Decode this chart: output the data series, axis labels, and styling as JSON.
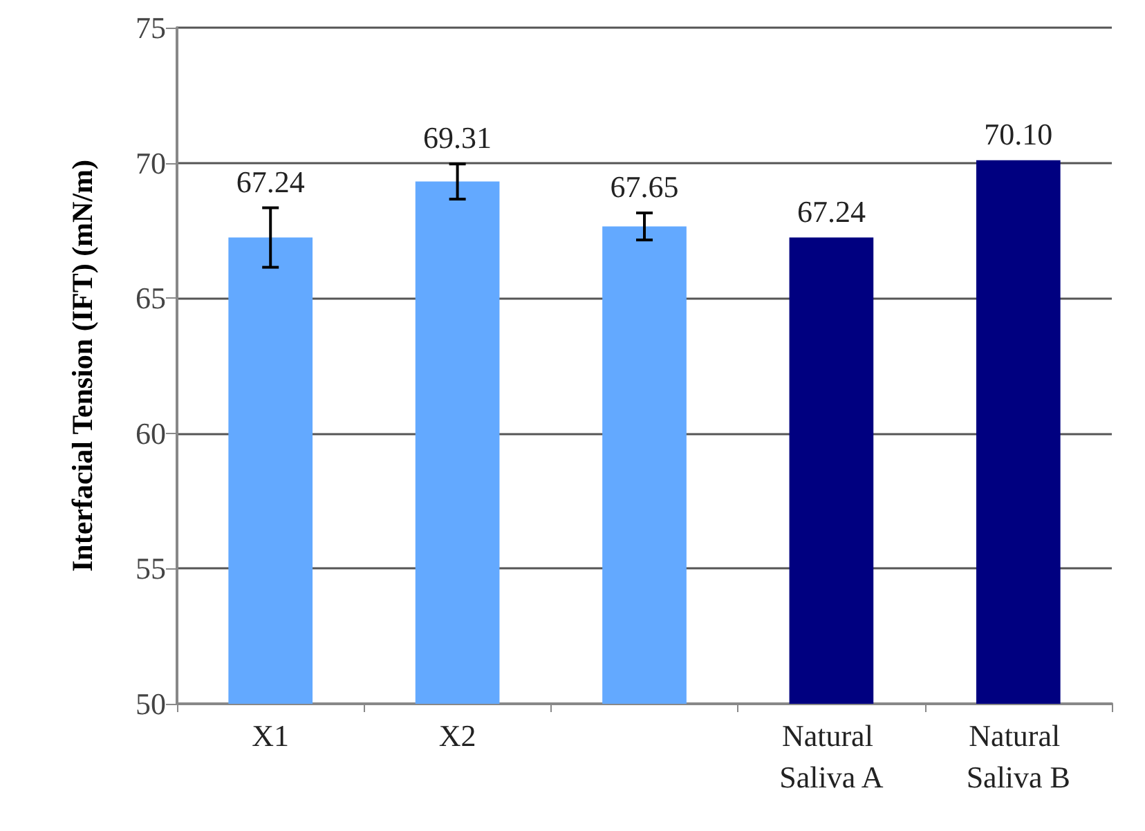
{
  "chart_data": {
    "type": "bar",
    "ylabel": "Interfacial Tension (IFT) (mN/m)",
    "categories": [
      "X1",
      "X2",
      null,
      "Natural Saliva A",
      "Natural Saliva B"
    ],
    "values": [
      67.24,
      69.31,
      67.65,
      67.24,
      70.1
    ],
    "value_labels": [
      "67.24",
      "69.31",
      "67.65",
      "67.24",
      "70.10"
    ],
    "colors": [
      "#63a9ff",
      "#63a9ff",
      "#63a9ff",
      "#000080",
      "#000080"
    ],
    "errors": [
      1.1,
      0.65,
      0.5,
      null,
      null
    ],
    "ylim": [
      50,
      75
    ],
    "yticks": [
      50,
      55,
      60,
      65,
      70,
      75
    ],
    "grid": "y"
  }
}
